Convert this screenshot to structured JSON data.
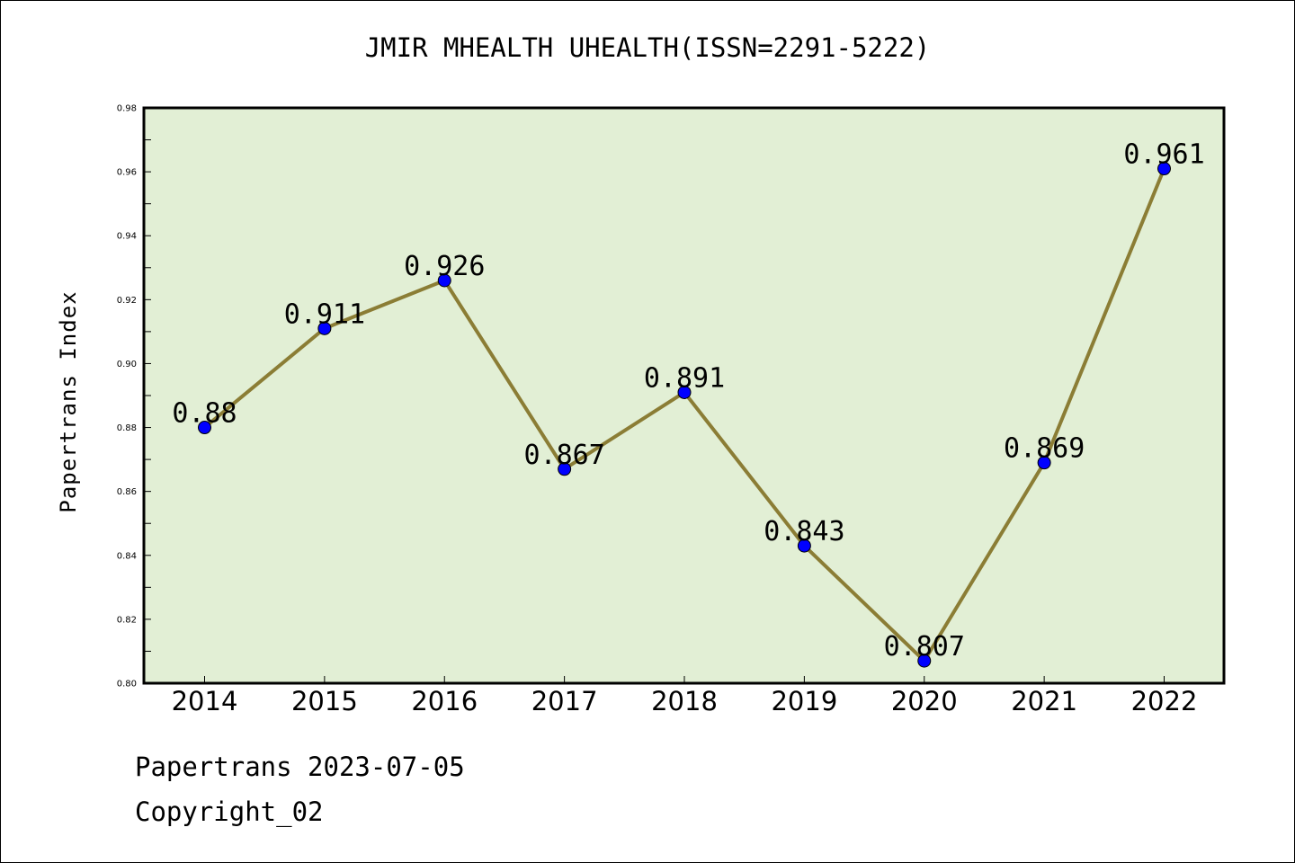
{
  "chart_data": {
    "type": "line",
    "title": "JMIR MHEALTH UHEALTH(ISSN=2291-5222)",
    "xlabel": "",
    "ylabel": "Papertrans Index",
    "categories": [
      "2014",
      "2015",
      "2016",
      "2017",
      "2018",
      "2019",
      "2020",
      "2021",
      "2022"
    ],
    "values": [
      0.88,
      0.911,
      0.926,
      0.867,
      0.891,
      0.843,
      0.807,
      0.869,
      0.961
    ],
    "data_labels": [
      "0.88",
      "0.911",
      "0.926",
      "0.867",
      "0.891",
      "0.843",
      "0.807",
      "0.869",
      "0.961"
    ],
    "ylim": [
      0.8,
      0.98
    ],
    "yticks": [
      "0.80",
      "0.82",
      "0.84",
      "0.86",
      "0.88",
      "0.90",
      "0.92",
      "0.94",
      "0.96",
      "0.98"
    ],
    "grid": false,
    "colors": {
      "plot_background": "#e2efd5",
      "line": "#8b7d35",
      "marker": "#0000ff"
    }
  },
  "footer": {
    "line1": "Papertrans 2023-07-05",
    "line2": "Copyright_02"
  }
}
